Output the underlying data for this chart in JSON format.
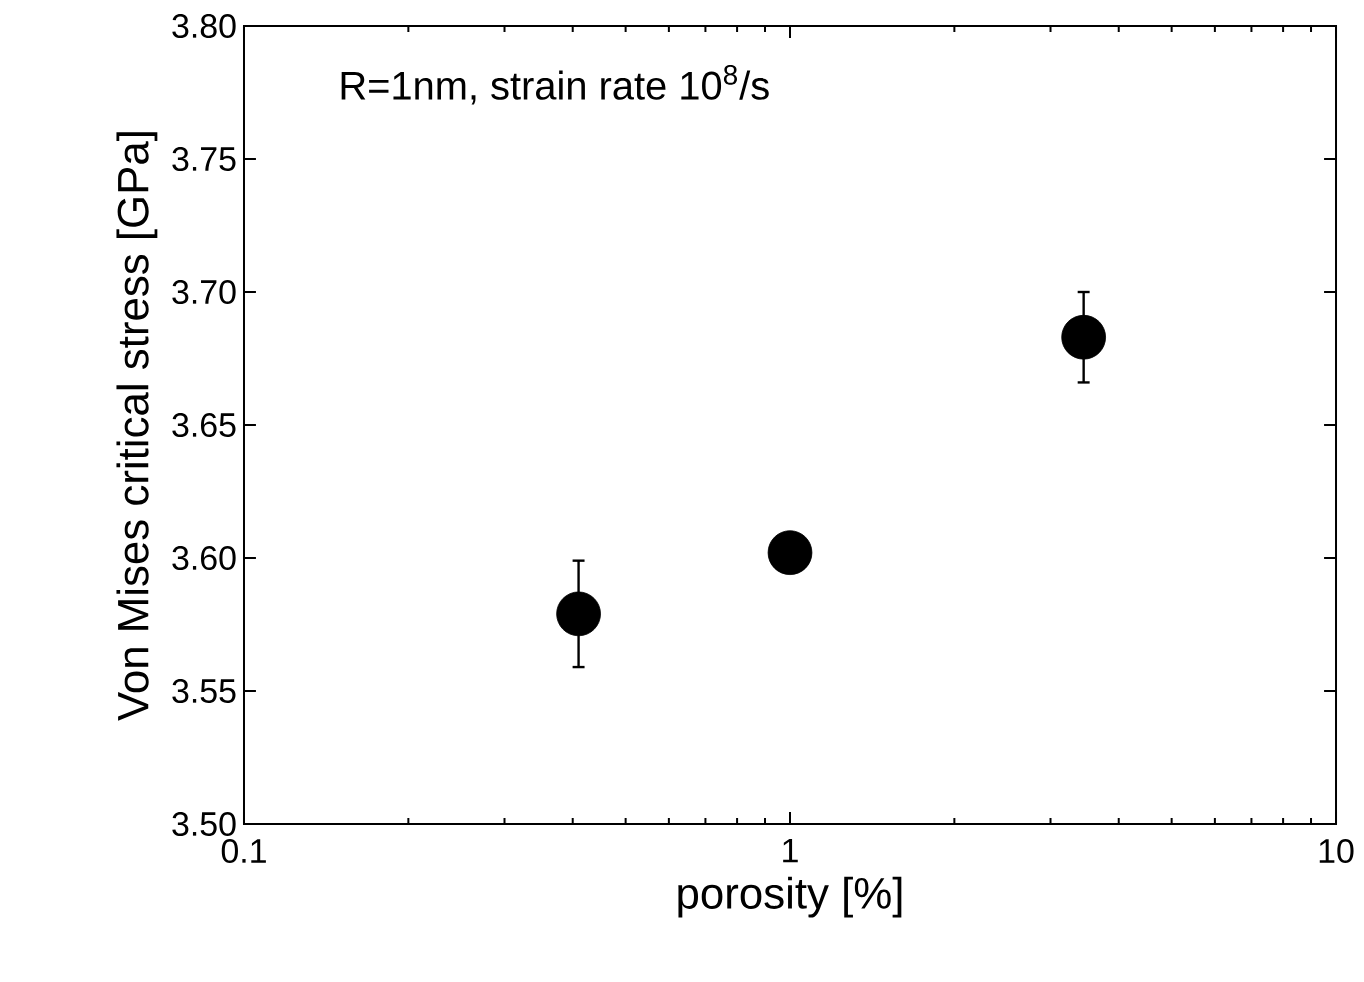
{
  "chart_data": {
    "type": "scatter",
    "xlabel": "porosity [%]",
    "ylabel": "Von Mises critical stress [GPa]",
    "annotations": [
      "R=1nm, strain rate 10$^{8}$/s"
    ],
    "log": "x",
    "xlim": [
      0.1,
      10
    ],
    "xticks": [
      0.1,
      1,
      10
    ],
    "ylim": [
      3.5,
      3.8
    ],
    "yticks": [
      {
        "value": 3.5,
        "label": "3.50"
      },
      {
        "value": 3.55,
        "label": "3.55"
      },
      {
        "value": 3.6,
        "label": "3.60"
      },
      {
        "value": 3.65,
        "label": "3.65"
      },
      {
        "value": 3.7,
        "label": "3.70"
      },
      {
        "value": 3.75,
        "label": "3.75"
      },
      {
        "value": 3.8,
        "label": "3.80"
      }
    ],
    "marker": "circle",
    "series": [
      {
        "color": "#000000",
        "x": [
          0.41,
          1.0,
          3.45
        ],
        "values": [
          3.579,
          3.602,
          3.683
        ],
        "errors": [
          0.02,
          null,
          0.017
        ]
      }
    ]
  }
}
